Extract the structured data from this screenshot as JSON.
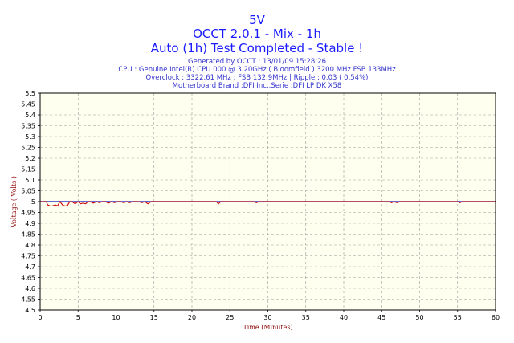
{
  "titles": {
    "line1": "5V",
    "line2": "OCCT 2.0.1 - Mix - 1h",
    "line3": "Auto (1h) Test Completed - Stable !"
  },
  "subtitles": {
    "generated": "Generated by OCCT : 13/01/09 15:28:26",
    "cpu": "CPU : Genuine Intel(R) CPU 000 @ 3.20GHz ( Bloomfield ) 3200 MHz FSB 133MHz",
    "overclock": "Overclock : 3322.61 MHz ; FSB 132.9MHz | Ripple : 0.03 ( 0.54%)",
    "motherboard": "Motherboard Brand :DFI Inc.,Serie :DFI LP DK X58"
  },
  "chart_data": {
    "type": "line",
    "xlabel": "Time (Minutes)",
    "ylabel": "Voltage ( Volts )",
    "xlim": [
      0,
      60
    ],
    "ylim": [
      4.5,
      5.5
    ],
    "xticks": [
      0,
      5,
      10,
      15,
      20,
      25,
      30,
      35,
      40,
      45,
      50,
      55,
      60
    ],
    "yticks": [
      4.5,
      4.55,
      4.6,
      4.65,
      4.7,
      4.75,
      4.8,
      4.85,
      4.9,
      4.95,
      5,
      5.05,
      5.1,
      5.15,
      5.2,
      5.25,
      5.3,
      5.35,
      5.4,
      5.45,
      5.5
    ],
    "grid": true,
    "colors": {
      "voltage": "#cc0000",
      "average": "#3333cc",
      "plot_bg": "#fffff0"
    },
    "series": [
      {
        "color": "#3333cc",
        "x": [
          0,
          60
        ],
        "y": [
          5.0,
          5.0
        ]
      },
      {
        "color": "#cc0000",
        "x": [
          0,
          0.8,
          1.0,
          1.3,
          1.6,
          2.0,
          2.3,
          2.6,
          3.0,
          3.3,
          3.6,
          3.9,
          4.2,
          4.6,
          5.0,
          5.3,
          5.6,
          6.0,
          6.3,
          6.6,
          7.0,
          7.4,
          7.8,
          8.2,
          8.6,
          9.0,
          9.4,
          9.8,
          10.2,
          10.6,
          11.0,
          11.4,
          11.8,
          12.2,
          12.6,
          13.0,
          13.4,
          13.8,
          14.2,
          14.6,
          18,
          23.2,
          23.5,
          23.8,
          26,
          28.2,
          28.5,
          28.8,
          35,
          46,
          46.3,
          46.6,
          47.0,
          47.4,
          47.8,
          55,
          55.3,
          55.6,
          60
        ],
        "y": [
          5.0,
          5.0,
          4.985,
          4.98,
          4.98,
          4.985,
          4.98,
          5.0,
          4.983,
          4.98,
          4.982,
          5.0,
          5.0,
          4.99,
          5.0,
          4.99,
          4.993,
          4.99,
          5.0,
          5.0,
          4.993,
          5.0,
          4.995,
          5.0,
          5.0,
          4.993,
          5.0,
          4.995,
          5.0,
          5.0,
          4.995,
          5.0,
          4.995,
          5.0,
          5.0,
          5.0,
          4.995,
          5.0,
          4.99,
          5.0,
          5.0,
          5.0,
          4.99,
          5.0,
          5.0,
          5.0,
          4.995,
          5.0,
          5.0,
          5.0,
          4.995,
          5.0,
          4.995,
          5.0,
          5.0,
          5.0,
          4.995,
          5.0,
          5.0
        ]
      }
    ]
  }
}
